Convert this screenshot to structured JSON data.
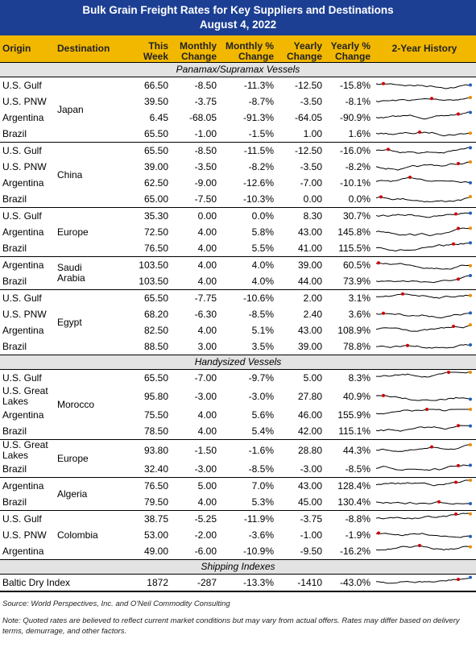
{
  "header": {
    "title": "Bulk Grain Freight Rates for Key Suppliers and Destinations",
    "date": "August 4, 2022"
  },
  "table": {
    "columns": [
      "Origin",
      "Destination",
      "This Week",
      "Monthly Change",
      "Monthly % Change",
      "Yearly Change",
      "Yearly % Change",
      "2-Year History"
    ],
    "sections": [
      {
        "name": "Panamax/Supramax Vessels",
        "groups": [
          {
            "destination": "Japan",
            "rows": [
              [
                "U.S. Gulf",
                "66.50",
                "-8.50",
                "-11.3%",
                "-12.50",
                "-15.8%"
              ],
              [
                "U.S. PNW",
                "39.50",
                "-3.75",
                "-8.7%",
                "-3.50",
                "-8.1%"
              ],
              [
                "Argentina",
                "6.45",
                "-68.05",
                "-91.3%",
                "-64.05",
                "-90.9%"
              ],
              [
                "Brazil",
                "65.50",
                "-1.00",
                "-1.5%",
                "1.00",
                "1.6%"
              ]
            ]
          },
          {
            "destination": "China",
            "rows": [
              [
                "U.S. Gulf",
                "65.50",
                "-8.50",
                "-11.5%",
                "-12.50",
                "-16.0%"
              ],
              [
                "U.S. PNW",
                "39.00",
                "-3.50",
                "-8.2%",
                "-3.50",
                "-8.2%"
              ],
              [
                "Argentina",
                "62.50",
                "-9.00",
                "-12.6%",
                "-7.00",
                "-10.1%"
              ],
              [
                "Brazil",
                "65.00",
                "-7.50",
                "-10.3%",
                "0.00",
                "0.0%"
              ]
            ]
          },
          {
            "destination": "Europe",
            "rows": [
              [
                "U.S. Gulf",
                "35.30",
                "0.00",
                "0.0%",
                "8.30",
                "30.7%"
              ],
              [
                "Argentina",
                "72.50",
                "4.00",
                "5.8%",
                "43.00",
                "145.8%"
              ],
              [
                "Brazil",
                "76.50",
                "4.00",
                "5.5%",
                "41.00",
                "115.5%"
              ]
            ]
          },
          {
            "destination": "Saudi Arabia",
            "rows": [
              [
                "Argentina",
                "103.50",
                "4.00",
                "4.0%",
                "39.00",
                "60.5%"
              ],
              [
                "Brazil",
                "103.50",
                "4.00",
                "4.0%",
                "44.00",
                "73.9%"
              ]
            ]
          },
          {
            "destination": "Egypt",
            "rows": [
              [
                "U.S. Gulf",
                "65.50",
                "-7.75",
                "-10.6%",
                "2.00",
                "3.1%"
              ],
              [
                "U.S. PNW",
                "68.20",
                "-6.30",
                "-8.5%",
                "2.40",
                "3.6%"
              ],
              [
                "Argentina",
                "82.50",
                "4.00",
                "5.1%",
                "43.00",
                "108.9%"
              ],
              [
                "Brazil",
                "88.50",
                "3.00",
                "3.5%",
                "39.00",
                "78.8%"
              ]
            ]
          }
        ]
      },
      {
        "name": "Handysized Vessels",
        "groups": [
          {
            "destination": "Morocco",
            "rows": [
              [
                "U.S. Gulf",
                "65.50",
                "-7.00",
                "-9.7%",
                "5.00",
                "8.3%"
              ],
              [
                "U.S. Great Lakes",
                "95.80",
                "-3.00",
                "-3.0%",
                "27.80",
                "40.9%"
              ],
              [
                "Argentina",
                "75.50",
                "4.00",
                "5.6%",
                "46.00",
                "155.9%"
              ],
              [
                "Brazil",
                "78.50",
                "4.00",
                "5.4%",
                "42.00",
                "115.1%"
              ]
            ]
          },
          {
            "destination": "Europe",
            "rows": [
              [
                "U.S. Great Lakes",
                "93.80",
                "-1.50",
                "-1.6%",
                "28.80",
                "44.3%"
              ],
              [
                "Brazil",
                "32.40",
                "-3.00",
                "-8.5%",
                "-3.00",
                "-8.5%"
              ]
            ]
          },
          {
            "destination": "Algeria",
            "rows": [
              [
                "Argentina",
                "76.50",
                "5.00",
                "7.0%",
                "43.00",
                "128.4%"
              ],
              [
                "Brazil",
                "79.50",
                "4.00",
                "5.3%",
                "45.00",
                "130.4%"
              ]
            ]
          },
          {
            "destination": "Colombia",
            "rows": [
              [
                "U.S. Gulf",
                "38.75",
                "-5.25",
                "-11.9%",
                "-3.75",
                "-8.8%"
              ],
              [
                "U.S. PNW",
                "53.00",
                "-2.00",
                "-3.6%",
                "-1.00",
                "-1.9%"
              ],
              [
                "Argentina",
                "49.00",
                "-6.00",
                "-10.9%",
                "-9.50",
                "-16.2%"
              ]
            ]
          }
        ]
      },
      {
        "name": "Shipping Indexes",
        "groups": [
          {
            "rows": [
              [
                "Baltic Dry Index",
                "1872",
                "-287",
                "-13.3%",
                "-1410",
                "-43.0%"
              ]
            ]
          }
        ]
      }
    ]
  },
  "footer": {
    "source": "Source: World Perspectives, Inc. and O'Neil Commodity Consulting",
    "note": "Note: Quoted rates are believed to reflect current market conditions but may vary from actual offers. Rates may differ based on delivery terms, demurrage, and other factors."
  }
}
